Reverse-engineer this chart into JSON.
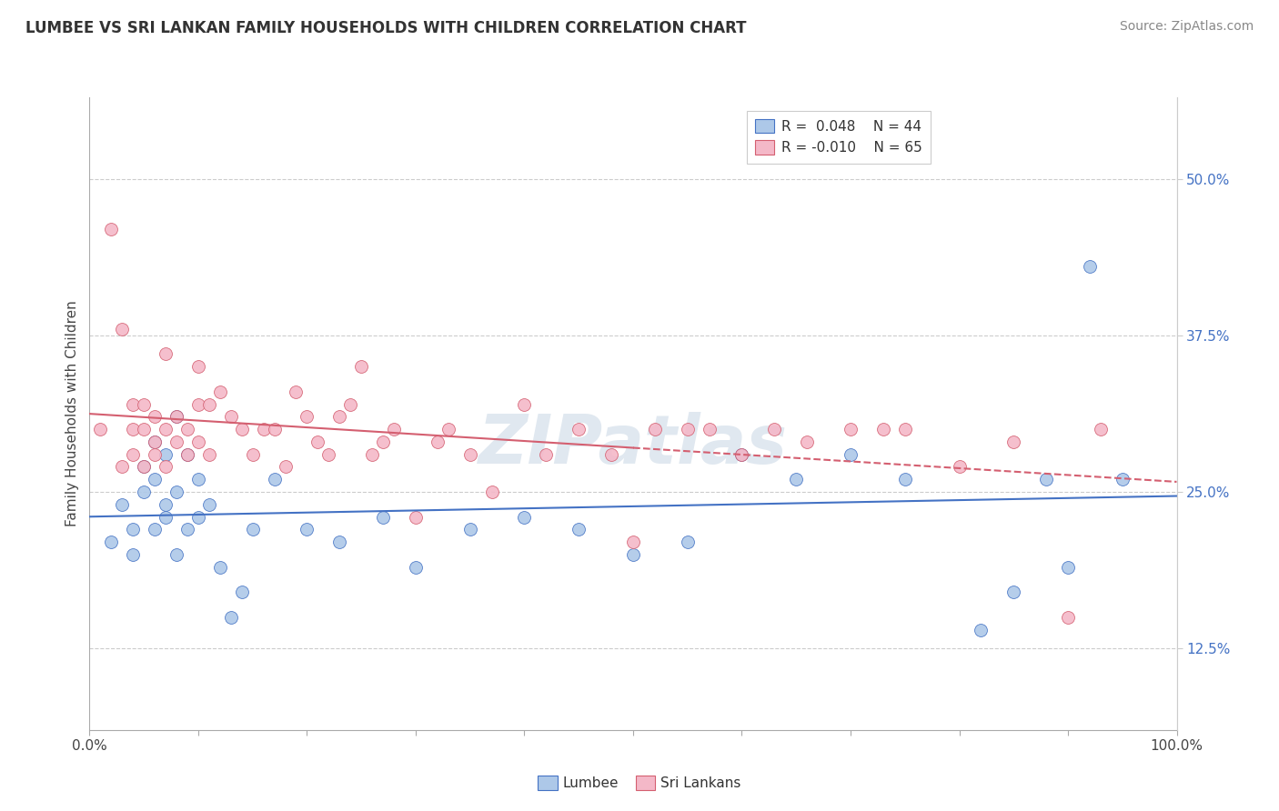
{
  "title": "LUMBEE VS SRI LANKAN FAMILY HOUSEHOLDS WITH CHILDREN CORRELATION CHART",
  "source": "Source: ZipAtlas.com",
  "ylabel": "Family Households with Children",
  "legend_lumbee": "Lumbee",
  "legend_srilankan": "Sri Lankans",
  "legend_r_lumbee": "R =  0.048",
  "legend_n_lumbee": "N = 44",
  "legend_r_srilankan": "R = -0.010",
  "legend_n_srilankan": "N = 65",
  "lumbee_color": "#adc8e8",
  "srilankan_color": "#f4b8c8",
  "lumbee_line_color": "#4472c4",
  "srilankan_line_color": "#d45f70",
  "xlim": [
    0.0,
    1.0
  ],
  "ylim": [
    0.06,
    0.565
  ],
  "xtick_major": [
    0.0,
    0.1,
    0.2,
    0.3,
    0.4,
    0.5,
    0.6,
    0.7,
    0.8,
    0.9,
    1.0
  ],
  "xtick_labeled": [
    0.0,
    1.0
  ],
  "xtick_label_vals": [
    "0.0%",
    "100.0%"
  ],
  "yticks_right": [
    0.125,
    0.25,
    0.375,
    0.5
  ],
  "ytick_labels_right": [
    "12.5%",
    "25.0%",
    "37.5%",
    "50.0%"
  ],
  "lumbee_x": [
    0.02,
    0.03,
    0.04,
    0.04,
    0.05,
    0.05,
    0.06,
    0.06,
    0.06,
    0.07,
    0.07,
    0.07,
    0.08,
    0.08,
    0.08,
    0.09,
    0.09,
    0.1,
    0.1,
    0.11,
    0.12,
    0.13,
    0.14,
    0.15,
    0.17,
    0.2,
    0.23,
    0.27,
    0.3,
    0.35,
    0.4,
    0.45,
    0.5,
    0.55,
    0.6,
    0.65,
    0.7,
    0.75,
    0.82,
    0.85,
    0.88,
    0.9,
    0.92,
    0.95
  ],
  "lumbee_y": [
    0.21,
    0.24,
    0.22,
    0.2,
    0.25,
    0.27,
    0.26,
    0.29,
    0.22,
    0.23,
    0.24,
    0.28,
    0.25,
    0.2,
    0.31,
    0.22,
    0.28,
    0.23,
    0.26,
    0.24,
    0.19,
    0.15,
    0.17,
    0.22,
    0.26,
    0.22,
    0.21,
    0.23,
    0.19,
    0.22,
    0.23,
    0.22,
    0.2,
    0.21,
    0.28,
    0.26,
    0.28,
    0.26,
    0.14,
    0.17,
    0.26,
    0.19,
    0.43,
    0.26
  ],
  "srilankan_x": [
    0.01,
    0.02,
    0.03,
    0.03,
    0.04,
    0.04,
    0.04,
    0.05,
    0.05,
    0.05,
    0.06,
    0.06,
    0.06,
    0.07,
    0.07,
    0.07,
    0.08,
    0.08,
    0.09,
    0.09,
    0.1,
    0.1,
    0.1,
    0.11,
    0.11,
    0.12,
    0.13,
    0.14,
    0.15,
    0.16,
    0.17,
    0.18,
    0.19,
    0.2,
    0.21,
    0.22,
    0.23,
    0.24,
    0.25,
    0.26,
    0.27,
    0.28,
    0.3,
    0.32,
    0.33,
    0.35,
    0.37,
    0.4,
    0.42,
    0.45,
    0.48,
    0.5,
    0.52,
    0.55,
    0.57,
    0.6,
    0.63,
    0.66,
    0.7,
    0.73,
    0.75,
    0.8,
    0.85,
    0.9,
    0.93
  ],
  "srilankan_y": [
    0.3,
    0.46,
    0.38,
    0.27,
    0.32,
    0.3,
    0.28,
    0.32,
    0.3,
    0.27,
    0.29,
    0.31,
    0.28,
    0.3,
    0.36,
    0.27,
    0.31,
    0.29,
    0.28,
    0.3,
    0.35,
    0.32,
    0.29,
    0.32,
    0.28,
    0.33,
    0.31,
    0.3,
    0.28,
    0.3,
    0.3,
    0.27,
    0.33,
    0.31,
    0.29,
    0.28,
    0.31,
    0.32,
    0.35,
    0.28,
    0.29,
    0.3,
    0.23,
    0.29,
    0.3,
    0.28,
    0.25,
    0.32,
    0.28,
    0.3,
    0.28,
    0.21,
    0.3,
    0.3,
    0.3,
    0.28,
    0.3,
    0.29,
    0.3,
    0.3,
    0.3,
    0.27,
    0.29,
    0.15,
    0.3
  ]
}
